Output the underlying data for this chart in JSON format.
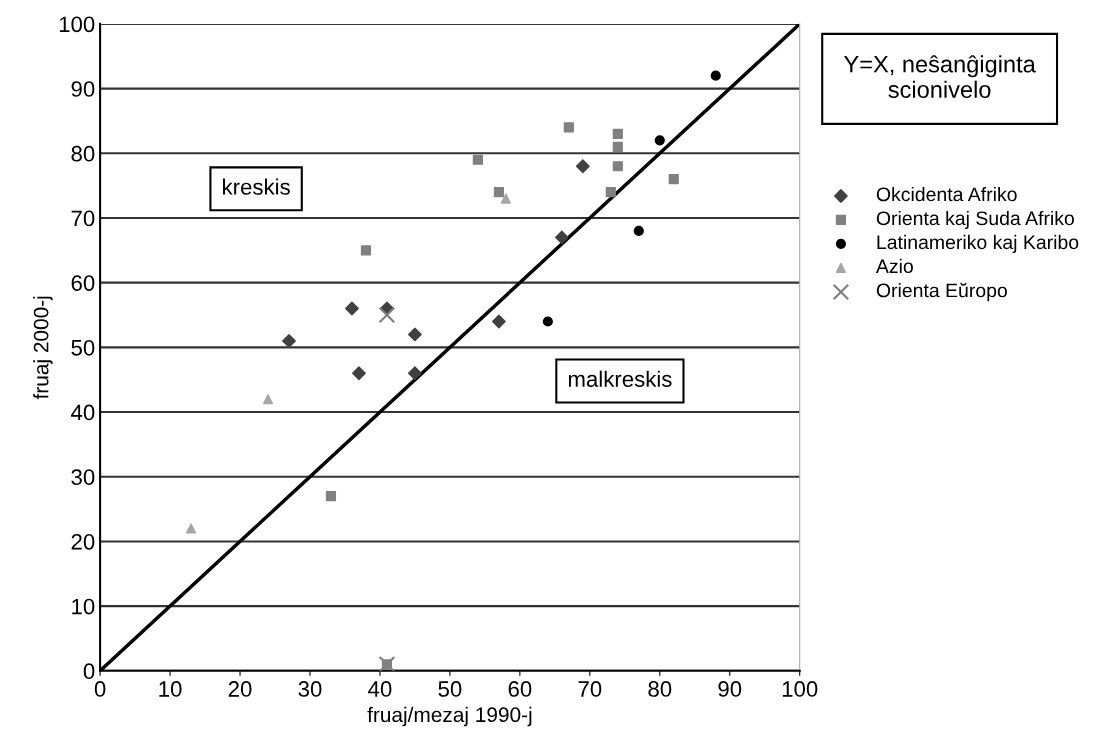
{
  "chart_data": {
    "type": "scatter",
    "xlabel": "fruaj/mezaj 1990-j",
    "ylabel": "fruaj 2000-j",
    "xlim": [
      0,
      100
    ],
    "ylim": [
      0,
      100
    ],
    "xticks": [
      0,
      10,
      20,
      30,
      40,
      50,
      60,
      70,
      80,
      90,
      100
    ],
    "yticks": [
      0,
      10,
      20,
      30,
      40,
      50,
      60,
      70,
      80,
      90,
      100
    ],
    "grid": "y",
    "legend": "right",
    "annotations": [
      "Y=X, neŝanĝiginta scionivelo",
      "kreskis",
      "malkreskis"
    ],
    "series": [
      {
        "name": "Okcidenta Afriko",
        "color": "#404040",
        "marker": "diamond",
        "x": [
          27,
          36,
          41,
          37,
          45,
          45,
          57,
          66,
          69
        ],
        "values": [
          51,
          56,
          56,
          46,
          52,
          46,
          54,
          67,
          78
        ]
      },
      {
        "name": "Orienta kaj Suda Afriko",
        "color": "#808080",
        "marker": "square",
        "x": [
          54,
          57,
          67,
          74,
          74,
          74,
          73,
          82,
          38,
          33,
          41
        ],
        "values": [
          79,
          74,
          84,
          83,
          81,
          78,
          74,
          76,
          65,
          27,
          1
        ]
      },
      {
        "name": "Latinameriko kaj Karibo",
        "color": "#000000",
        "marker": "circle",
        "x": [
          88,
          80,
          77,
          64
        ],
        "values": [
          92,
          82,
          68,
          54
        ]
      },
      {
        "name": "Azio",
        "color": "#a6a6a6",
        "marker": "triangle",
        "x": [
          13,
          24,
          58
        ],
        "values": [
          22,
          42,
          73
        ]
      },
      {
        "name": "Orienta Eŭropo",
        "color": "#808080",
        "marker": "cross",
        "x": [
          41,
          41
        ],
        "values": [
          55,
          1
        ]
      },
      {
        "type": "line",
        "color": "#000000",
        "marker": "none",
        "line_style": "solid",
        "x": [
          0,
          100
        ],
        "values": [
          0,
          100
        ]
      }
    ]
  }
}
